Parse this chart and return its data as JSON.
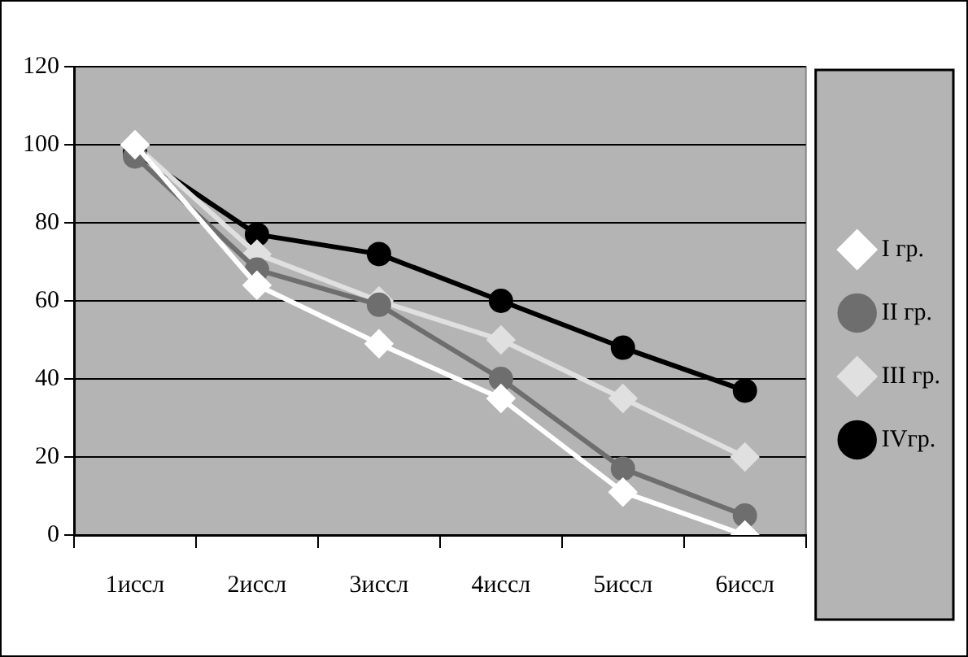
{
  "chart_data": {
    "type": "line",
    "categories": [
      "1иссл",
      "2иссл",
      "3иссл",
      "4иссл",
      "5иссл",
      "6иссл"
    ],
    "series": [
      {
        "name": "I гр.",
        "color": "#ffffff",
        "marker": "diamond",
        "values": [
          100,
          64,
          49,
          35,
          11,
          0
        ]
      },
      {
        "name": "II гр.",
        "color": "#6e6e6e",
        "marker": "circle",
        "values": [
          97,
          68,
          59,
          40,
          17,
          5
        ]
      },
      {
        "name": "III гр.",
        "color": "#e0e0e0",
        "marker": "diamond",
        "values": [
          100,
          72,
          60,
          50,
          35,
          20
        ]
      },
      {
        "name": "IVгр.",
        "color": "#000000",
        "marker": "circle",
        "values": [
          98,
          77,
          72,
          60,
          48,
          37
        ]
      }
    ],
    "ylim": [
      0,
      120
    ],
    "yticks": [
      0,
      20,
      40,
      60,
      80,
      100,
      120
    ],
    "grid": "y",
    "legend": "right"
  }
}
